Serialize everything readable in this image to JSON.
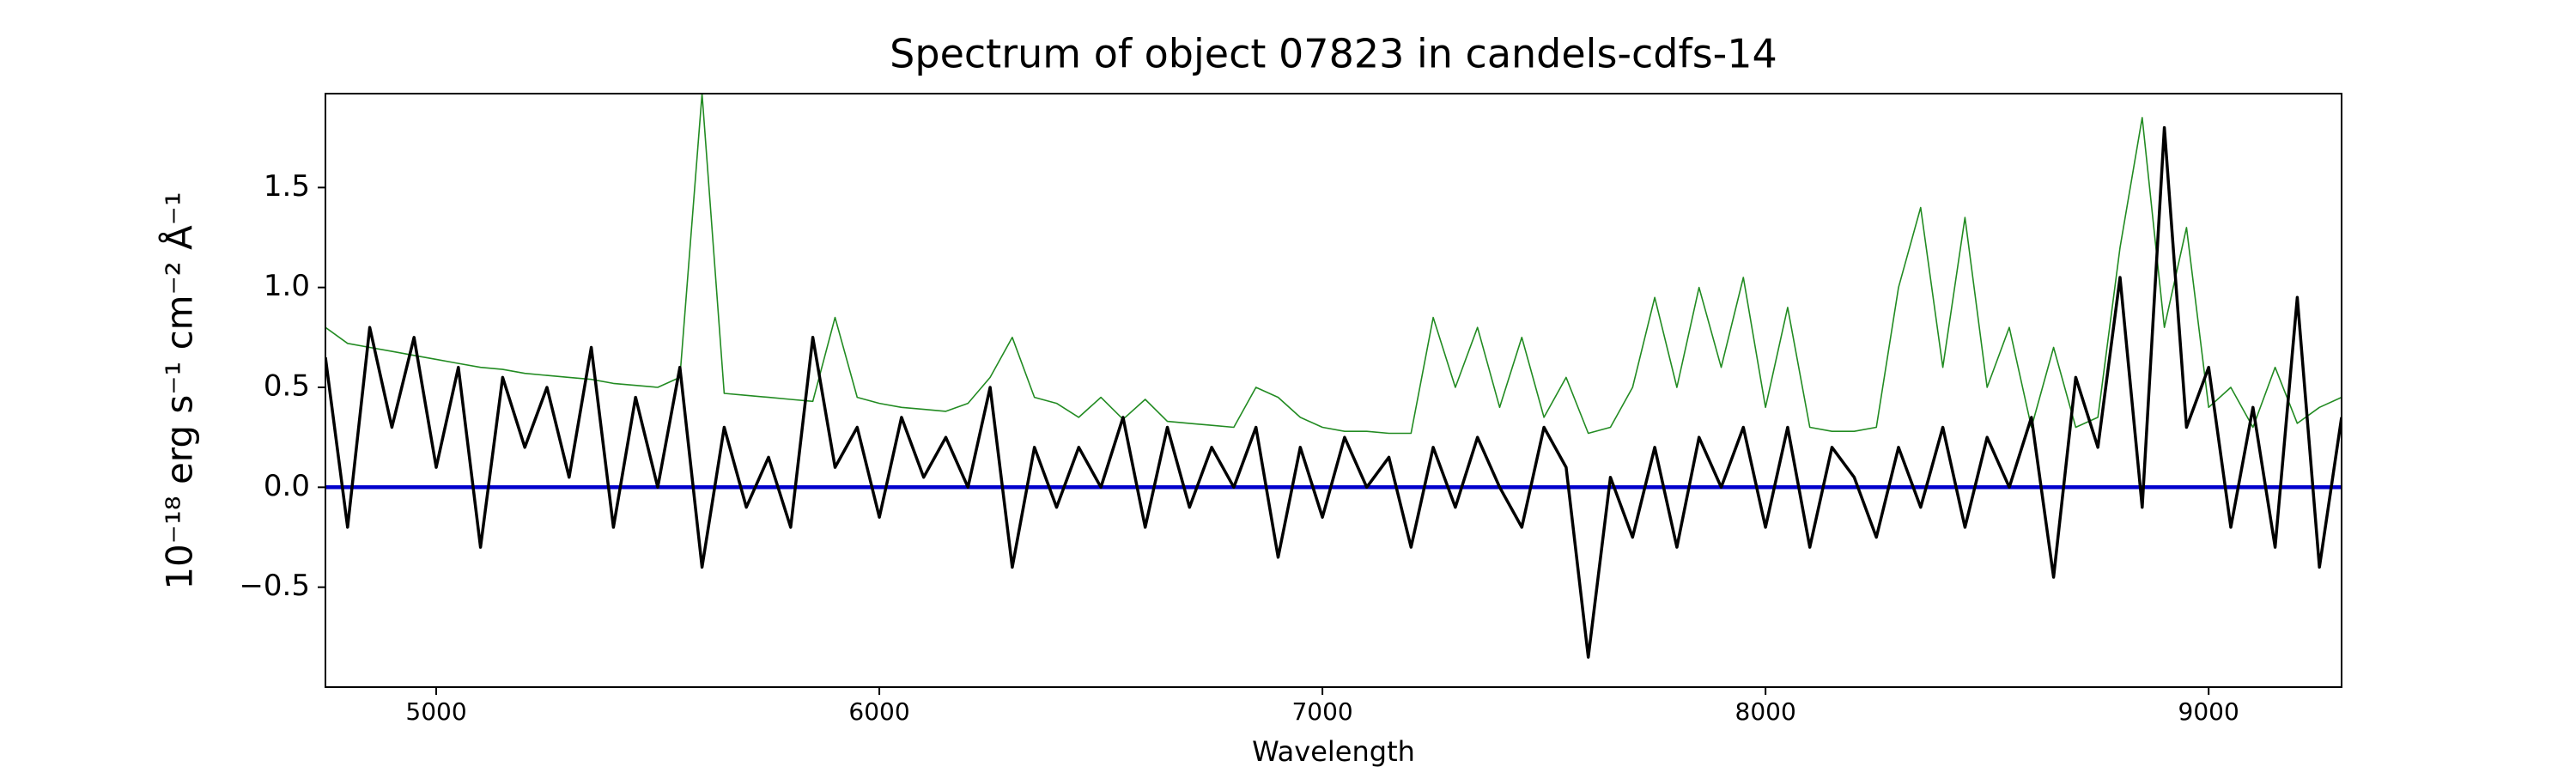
{
  "chart_data": {
    "type": "line",
    "title": "Spectrum of object 07823 in candels-cdfs-14",
    "xlabel": "Wavelength",
    "ylabel": "10⁻¹⁸ erg s⁻¹ cm⁻² Å⁻¹",
    "x": [
      4750,
      4800,
      4850,
      4900,
      4950,
      5000,
      5050,
      5100,
      5150,
      5200,
      5250,
      5300,
      5350,
      5400,
      5450,
      5500,
      5550,
      5600,
      5650,
      5700,
      5750,
      5800,
      5850,
      5900,
      5950,
      6000,
      6050,
      6100,
      6150,
      6200,
      6250,
      6300,
      6350,
      6400,
      6450,
      6500,
      6550,
      6600,
      6650,
      6700,
      6750,
      6800,
      6850,
      6900,
      6950,
      7000,
      7050,
      7100,
      7150,
      7200,
      7250,
      7300,
      7350,
      7400,
      7450,
      7500,
      7550,
      7600,
      7650,
      7700,
      7750,
      7800,
      7850,
      7900,
      7950,
      8000,
      8050,
      8100,
      8150,
      8200,
      8250,
      8300,
      8350,
      8400,
      8450,
      8500,
      8550,
      8600,
      8650,
      8700,
      8750,
      8800,
      8850,
      8900,
      8950,
      9000,
      9050,
      9100,
      9150,
      9200,
      9250,
      9300
    ],
    "series": [
      {
        "color": "#228b22",
        "width": 1.6,
        "values": [
          0.8,
          0.72,
          0.7,
          0.68,
          0.66,
          0.64,
          0.62,
          0.6,
          0.59,
          0.57,
          0.56,
          0.55,
          0.54,
          0.52,
          0.51,
          0.5,
          0.55,
          1.97,
          0.47,
          0.46,
          0.45,
          0.44,
          0.43,
          0.85,
          0.45,
          0.42,
          0.4,
          0.39,
          0.38,
          0.42,
          0.55,
          0.75,
          0.45,
          0.42,
          0.35,
          0.45,
          0.34,
          0.44,
          0.33,
          0.32,
          0.31,
          0.3,
          0.5,
          0.45,
          0.35,
          0.3,
          0.28,
          0.28,
          0.27,
          0.27,
          0.85,
          0.5,
          0.8,
          0.4,
          0.75,
          0.35,
          0.55,
          0.27,
          0.3,
          0.5,
          0.95,
          0.5,
          1.0,
          0.6,
          1.05,
          0.4,
          0.9,
          0.3,
          0.28,
          0.28,
          0.3,
          1.0,
          1.4,
          0.6,
          1.35,
          0.5,
          0.8,
          0.3,
          0.7,
          0.3,
          0.35,
          1.2,
          1.85,
          0.8,
          1.3,
          0.4,
          0.5,
          0.3,
          0.6,
          0.32,
          0.4,
          0.45
        ]
      },
      {
        "color": "#0000cc",
        "width": 4.5,
        "values": [
          0,
          0,
          0,
          0,
          0,
          0,
          0,
          0,
          0,
          0,
          0,
          0,
          0,
          0,
          0,
          0,
          0,
          0,
          0,
          0,
          0,
          0,
          0,
          0,
          0,
          0,
          0,
          0,
          0,
          0,
          0,
          0,
          0,
          0,
          0,
          0,
          0,
          0,
          0,
          0,
          0,
          0,
          0,
          0,
          0,
          0,
          0,
          0,
          0,
          0,
          0,
          0,
          0,
          0,
          0,
          0,
          0,
          0,
          0,
          0,
          0,
          0,
          0,
          0,
          0,
          0,
          0,
          0,
          0,
          0,
          0,
          0,
          0,
          0,
          0,
          0,
          0,
          0,
          0,
          0,
          0,
          0,
          0,
          0,
          0,
          0,
          0,
          0,
          0,
          0,
          0,
          0
        ]
      },
      {
        "color": "#000000",
        "width": 3.5,
        "values": [
          0.65,
          -0.2,
          0.8,
          0.3,
          0.75,
          0.1,
          0.6,
          -0.3,
          0.55,
          0.2,
          0.5,
          0.05,
          0.7,
          -0.2,
          0.45,
          0.0,
          0.6,
          -0.4,
          0.3,
          -0.1,
          0.15,
          -0.2,
          0.75,
          0.1,
          0.3,
          -0.15,
          0.35,
          0.05,
          0.25,
          0.0,
          0.5,
          -0.4,
          0.2,
          -0.1,
          0.2,
          0.0,
          0.35,
          -0.2,
          0.3,
          -0.1,
          0.2,
          0.0,
          0.3,
          -0.35,
          0.2,
          -0.15,
          0.25,
          0.0,
          0.15,
          -0.3,
          0.2,
          -0.1,
          0.25,
          0.0,
          -0.2,
          0.3,
          0.1,
          -0.85,
          0.05,
          -0.25,
          0.2,
          -0.3,
          0.25,
          0.0,
          0.3,
          -0.2,
          0.3,
          -0.3,
          0.2,
          0.05,
          -0.25,
          0.2,
          -0.1,
          0.3,
          -0.2,
          0.25,
          0.0,
          0.35,
          -0.45,
          0.55,
          0.2,
          1.05,
          -0.1,
          1.8,
          0.3,
          0.6,
          -0.2,
          0.4,
          -0.3,
          0.95,
          -0.4,
          0.35
        ]
      }
    ],
    "xlim": [
      4750,
      9300
    ],
    "ylim": [
      -1.0,
      1.97
    ],
    "xticks": [
      5000,
      6000,
      7000,
      8000,
      9000
    ],
    "yticks": [
      {
        "value": -0.5,
        "label": "−0.5"
      },
      {
        "value": 0,
        "label": "0.0"
      },
      0.5,
      {
        "value": 1,
        "label": "1.0"
      },
      1.5
    ]
  }
}
